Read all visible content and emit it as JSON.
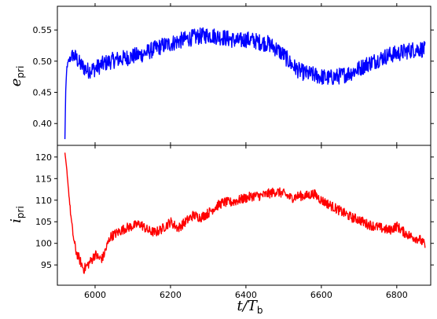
{
  "chart_data": [
    {
      "type": "line",
      "panel": "top",
      "ylabel_main": "e",
      "ylabel_sub": "pri",
      "xlim": [
        5900,
        6890
      ],
      "ylim": [
        0.365,
        0.588
      ],
      "yticks": [
        0.4,
        0.45,
        0.5,
        0.55
      ],
      "ytick_labels": [
        "0.40",
        "0.45",
        "0.50",
        "0.55"
      ],
      "xticks": [
        6000,
        6200,
        6400,
        6600,
        6800
      ],
      "show_xtick_labels": false,
      "grid": false,
      "color": "#0000ff",
      "series": [
        {
          "x": [
            5920,
            5922,
            5925,
            5930,
            5935,
            5940,
            5950,
            5960,
            5970,
            5980,
            6000,
            6020,
            6040,
            6060,
            6080,
            6100,
            6120,
            6140,
            6160,
            6180,
            6200,
            6220,
            6240,
            6260,
            6280,
            6300,
            6320,
            6340,
            6360,
            6380,
            6400,
            6420,
            6440,
            6460,
            6480,
            6500,
            6520,
            6540,
            6560,
            6580,
            6600,
            6620,
            6640,
            6660,
            6680,
            6700,
            6720,
            6740,
            6760,
            6780,
            6800,
            6820,
            6840,
            6860,
            6875
          ],
          "y": [
            0.375,
            0.45,
            0.49,
            0.5,
            0.505,
            0.51,
            0.505,
            0.495,
            0.49,
            0.485,
            0.488,
            0.495,
            0.5,
            0.503,
            0.505,
            0.508,
            0.51,
            0.515,
            0.52,
            0.525,
            0.528,
            0.532,
            0.535,
            0.538,
            0.54,
            0.542,
            0.54,
            0.538,
            0.535,
            0.532,
            0.535,
            0.533,
            0.53,
            0.528,
            0.52,
            0.51,
            0.495,
            0.485,
            0.48,
            0.478,
            0.475,
            0.473,
            0.475,
            0.478,
            0.482,
            0.488,
            0.495,
            0.5,
            0.505,
            0.51,
            0.512,
            0.515,
            0.518,
            0.52,
            0.518
          ]
        }
      ]
    },
    {
      "type": "line",
      "panel": "bottom",
      "ylabel_main": "i",
      "ylabel_sub": "pri",
      "xlabel_main": "t/T",
      "xlabel_sub": "b",
      "xlim": [
        5900,
        6890
      ],
      "ylim": [
        90.3,
        122.7
      ],
      "yticks": [
        95,
        100,
        105,
        110,
        115,
        120
      ],
      "ytick_labels": [
        "95",
        "100",
        "105",
        "110",
        "115",
        "120"
      ],
      "xticks": [
        6000,
        6200,
        6400,
        6600,
        6800
      ],
      "xtick_labels": [
        "6000",
        "6200",
        "6400",
        "6600",
        "6800"
      ],
      "grid": false,
      "color": "#ff0000",
      "series": [
        {
          "x": [
            5920,
            5925,
            5930,
            5935,
            5940,
            5945,
            5950,
            5955,
            5960,
            5965,
            5970,
            5980,
            5990,
            6000,
            6010,
            6020,
            6030,
            6040,
            6060,
            6080,
            6100,
            6120,
            6140,
            6160,
            6180,
            6200,
            6220,
            6240,
            6260,
            6280,
            6300,
            6320,
            6340,
            6360,
            6380,
            6400,
            6420,
            6440,
            6460,
            6480,
            6500,
            6520,
            6540,
            6560,
            6580,
            6600,
            6620,
            6640,
            6660,
            6680,
            6700,
            6720,
            6740,
            6760,
            6780,
            6800,
            6820,
            6840,
            6860,
            6875
          ],
          "y": [
            121,
            117,
            112,
            107,
            103,
            100,
            98,
            97,
            96,
            95,
            94,
            95,
            96,
            97.5,
            96.5,
            96.5,
            99,
            101.5,
            102.5,
            103.5,
            104,
            104.5,
            103,
            102.5,
            103.5,
            105,
            103.5,
            105,
            106.5,
            106,
            107,
            108.5,
            109.5,
            109.5,
            110,
            110.5,
            111,
            111,
            111.5,
            112,
            111.5,
            110.5,
            111,
            111,
            111.5,
            110,
            109,
            108,
            107,
            106,
            105.5,
            104.5,
            104,
            103.5,
            103,
            104,
            102.5,
            101.5,
            101,
            99.5
          ]
        }
      ]
    }
  ]
}
